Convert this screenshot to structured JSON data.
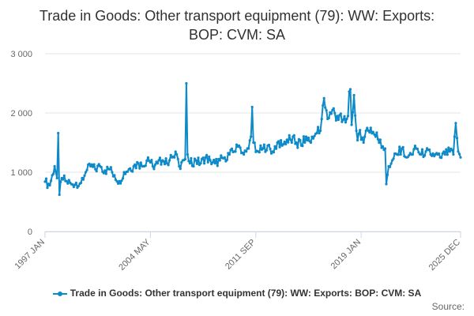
{
  "chart_data": {
    "type": "line",
    "title": "Trade in Goods: Other transport equipment (79): WW: Exports: BOP: CVM: SA",
    "xlabel": "",
    "ylabel": "",
    "ylim": [
      0,
      3000
    ],
    "yticks": [
      0,
      1000,
      2000,
      3000
    ],
    "ytick_labels": [
      "0",
      "1 000",
      "2 000",
      "3 000"
    ],
    "xticks": [
      {
        "label": "1997 JAN",
        "index": 0
      },
      {
        "label": "2004 MAY",
        "index": 88
      },
      {
        "label": "2011 SEP",
        "index": 176
      },
      {
        "label": "2019 JAN",
        "index": 264
      },
      {
        "label": "2025 DEC",
        "index": 347
      }
    ],
    "grid": true,
    "legend_position": "bottom",
    "series_color": "#0F8AC8",
    "start": "1997 JAN",
    "end": "2025 DEC",
    "anchors": [
      [
        0,
        840
      ],
      [
        4,
        780
      ],
      [
        6,
        950
      ],
      [
        8,
        1100
      ],
      [
        10,
        900
      ],
      [
        11,
        1660
      ],
      [
        12,
        620
      ],
      [
        14,
        900
      ],
      [
        18,
        850
      ],
      [
        22,
        800
      ],
      [
        26,
        820
      ],
      [
        30,
        820
      ],
      [
        34,
        1000
      ],
      [
        38,
        1100
      ],
      [
        42,
        1050
      ],
      [
        46,
        1100
      ],
      [
        50,
        1030
      ],
      [
        54,
        1050
      ],
      [
        56,
        1000
      ],
      [
        58,
        950
      ],
      [
        62,
        850
      ],
      [
        66,
        1000
      ],
      [
        70,
        1050
      ],
      [
        74,
        1100
      ],
      [
        78,
        1150
      ],
      [
        82,
        1100
      ],
      [
        86,
        1250
      ],
      [
        90,
        1100
      ],
      [
        94,
        1150
      ],
      [
        98,
        1200
      ],
      [
        102,
        1150
      ],
      [
        106,
        1250
      ],
      [
        108,
        1250
      ],
      [
        110,
        1300
      ],
      [
        112,
        1100
      ],
      [
        115,
        1200
      ],
      [
        117,
        1220
      ],
      [
        118,
        2500
      ],
      [
        119,
        1300
      ],
      [
        121,
        1150
      ],
      [
        126,
        1200
      ],
      [
        130,
        1150
      ],
      [
        134,
        1250
      ],
      [
        138,
        1200
      ],
      [
        142,
        1150
      ],
      [
        146,
        1200
      ],
      [
        150,
        1250
      ],
      [
        154,
        1300
      ],
      [
        158,
        1350
      ],
      [
        162,
        1450
      ],
      [
        166,
        1300
      ],
      [
        170,
        1400
      ],
      [
        172,
        1600
      ],
      [
        173,
        2100
      ],
      [
        174,
        1500
      ],
      [
        178,
        1350
      ],
      [
        182,
        1400
      ],
      [
        186,
        1450
      ],
      [
        190,
        1350
      ],
      [
        194,
        1500
      ],
      [
        198,
        1450
      ],
      [
        202,
        1550
      ],
      [
        206,
        1500
      ],
      [
        210,
        1500
      ],
      [
        214,
        1450
      ],
      [
        218,
        1600
      ],
      [
        222,
        1500
      ],
      [
        226,
        1650
      ],
      [
        230,
        1700
      ],
      [
        233,
        2250
      ],
      [
        236,
        1900
      ],
      [
        240,
        2050
      ],
      [
        244,
        1950
      ],
      [
        248,
        1850
      ],
      [
        252,
        1900
      ],
      [
        255,
        2400
      ],
      [
        256,
        1800
      ],
      [
        258,
        2300
      ],
      [
        260,
        1700
      ],
      [
        264,
        1550
      ],
      [
        268,
        1700
      ],
      [
        272,
        1750
      ],
      [
        276,
        1600
      ],
      [
        280,
        1550
      ],
      [
        284,
        1400
      ],
      [
        285,
        800
      ],
      [
        287,
        1100
      ],
      [
        290,
        1200
      ],
      [
        294,
        1300
      ],
      [
        298,
        1400
      ],
      [
        302,
        1250
      ],
      [
        306,
        1300
      ],
      [
        310,
        1400
      ],
      [
        314,
        1300
      ],
      [
        318,
        1350
      ],
      [
        322,
        1300
      ],
      [
        326,
        1300
      ],
      [
        330,
        1250
      ],
      [
        334,
        1300
      ],
      [
        338,
        1350
      ],
      [
        341,
        1300
      ],
      [
        342,
        1600
      ],
      [
        343,
        1830
      ],
      [
        345,
        1350
      ],
      [
        347,
        1250
      ]
    ]
  },
  "legend": {
    "label": "Trade in Goods: Other transport equipment (79): WW: Exports: BOP: CVM: SA"
  },
  "source": {
    "label": "Source:"
  }
}
